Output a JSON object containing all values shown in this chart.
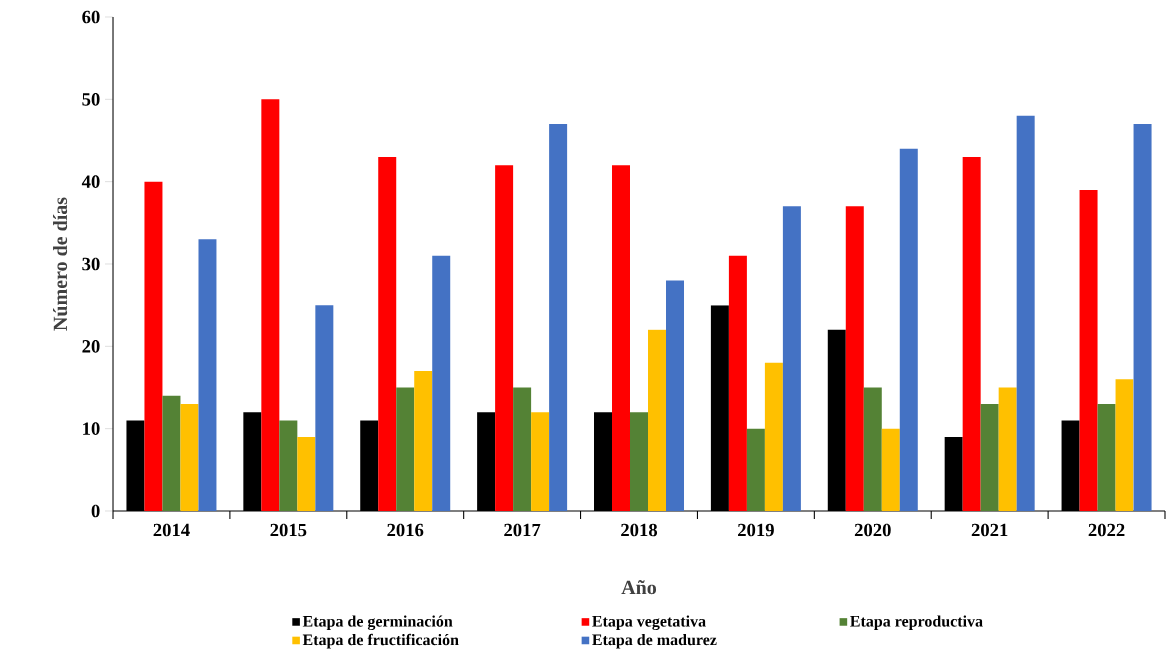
{
  "chart_data": {
    "type": "bar",
    "xlabel": "Año",
    "ylabel": "Número de días",
    "categories": [
      "2014",
      "2015",
      "2016",
      "2017",
      "2018",
      "2019",
      "2020",
      "2021",
      "2022"
    ],
    "series": [
      {
        "name": "Etapa de  germinación",
        "color": "#000000",
        "values": [
          11,
          12,
          11,
          12,
          12,
          25,
          22,
          9,
          11
        ]
      },
      {
        "name": "Etapa  vegetativa",
        "color": "#ff0000",
        "values": [
          40,
          50,
          43,
          42,
          42,
          31,
          37,
          43,
          39
        ]
      },
      {
        "name": "Etapa  reproductiva",
        "color": "#548235",
        "values": [
          14,
          11,
          15,
          15,
          12,
          10,
          15,
          13,
          13
        ]
      },
      {
        "name": "Etapa de  fructificación",
        "color": "#ffc000",
        "values": [
          13,
          9,
          17,
          12,
          22,
          18,
          10,
          15,
          16
        ]
      },
      {
        "name": "Etapa de  madurez",
        "color": "#4472c4",
        "values": [
          33,
          25,
          31,
          47,
          28,
          37,
          44,
          48,
          47
        ]
      }
    ],
    "ylim": [
      0,
      60
    ],
    "yticks": [
      0,
      10,
      20,
      30,
      40,
      50,
      60
    ],
    "grid": false,
    "legend": "bottom"
  }
}
